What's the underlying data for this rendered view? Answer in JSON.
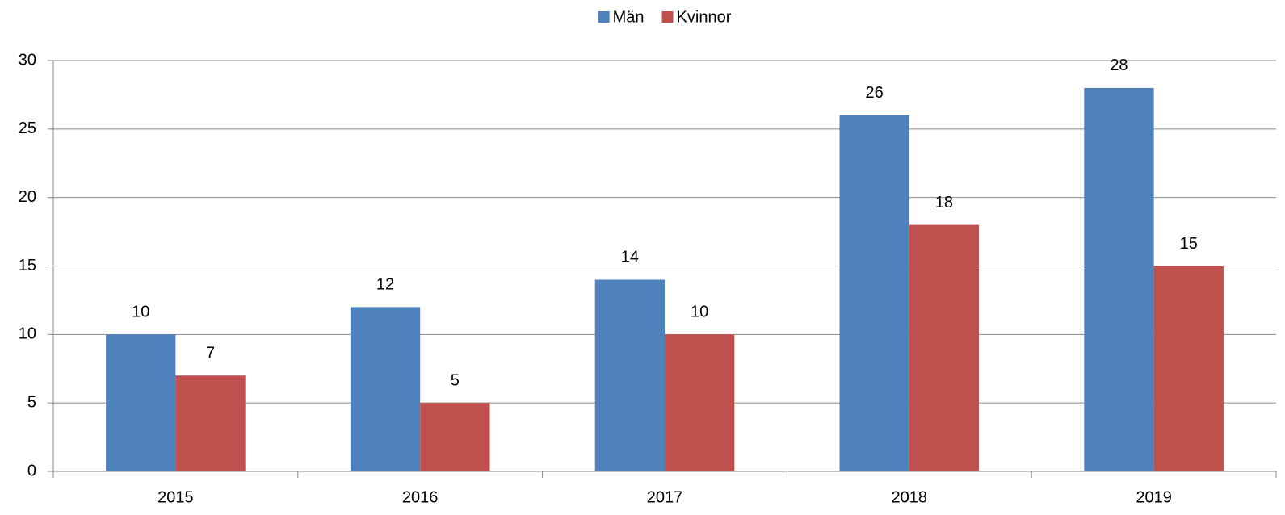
{
  "chart_data": {
    "type": "bar",
    "categories": [
      "2015",
      "2016",
      "2017",
      "2018",
      "2019"
    ],
    "series": [
      {
        "name": "Män",
        "color": "#4f81bd",
        "values": [
          10,
          12,
          14,
          26,
          28
        ]
      },
      {
        "name": "Kvinnor",
        "color": "#c0504d",
        "values": [
          7,
          5,
          10,
          18,
          15
        ]
      }
    ],
    "ylim": [
      0,
      30
    ],
    "yticks": [
      0,
      5,
      10,
      15,
      20,
      25,
      30
    ],
    "grid": true,
    "legend": "top"
  }
}
